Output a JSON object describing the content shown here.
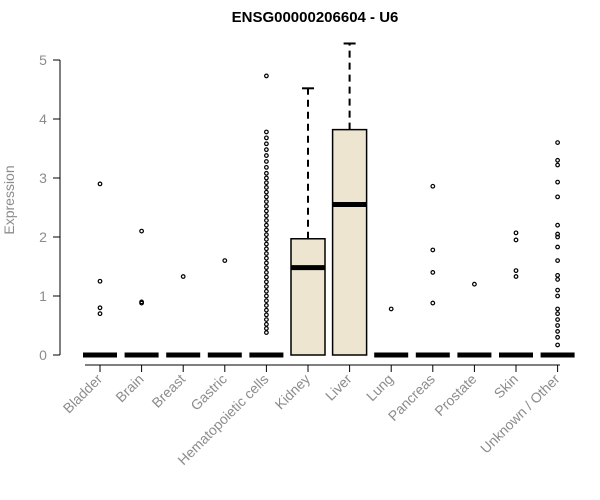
{
  "chart_data": {
    "type": "box",
    "title": "ENSG00000206604 - U6",
    "xlabel": "",
    "ylabel": "Expression",
    "ylim": [
      0,
      5.3
    ],
    "yticks": [
      0,
      1,
      2,
      3,
      4,
      5
    ],
    "grid": false,
    "legend": "none",
    "colors": {
      "box_fill": "#ede5cf",
      "stroke": "#000000",
      "axis_text": "#8c8c8c"
    },
    "categories": [
      "Bladder",
      "Brain",
      "Breast",
      "Gastric",
      "Hematopoietic cells",
      "Kidney",
      "Liver",
      "Lung",
      "Pancreas",
      "Prostate",
      "Skin",
      "Unknown / Other"
    ],
    "boxes": [
      {
        "category": "Bladder",
        "min": 0,
        "q1": 0,
        "median": 0,
        "q3": 0,
        "max": 0
      },
      {
        "category": "Brain",
        "min": 0,
        "q1": 0,
        "median": 0,
        "q3": 0,
        "max": 0
      },
      {
        "category": "Breast",
        "min": 0,
        "q1": 0,
        "median": 0,
        "q3": 0,
        "max": 0
      },
      {
        "category": "Gastric",
        "min": 0,
        "q1": 0,
        "median": 0,
        "q3": 0,
        "max": 0
      },
      {
        "category": "Hematopoietic cells",
        "min": 0,
        "q1": 0,
        "median": 0,
        "q3": 0,
        "max": 0
      },
      {
        "category": "Kidney",
        "min": 0,
        "q1": 0,
        "median": 1.48,
        "q3": 1.97,
        "max": 4.52
      },
      {
        "category": "Liver",
        "min": 0,
        "q1": 0,
        "median": 2.55,
        "q3": 3.82,
        "max": 5.28
      },
      {
        "category": "Lung",
        "min": 0,
        "q1": 0,
        "median": 0,
        "q3": 0,
        "max": 0
      },
      {
        "category": "Pancreas",
        "min": 0,
        "q1": 0,
        "median": 0,
        "q3": 0,
        "max": 0
      },
      {
        "category": "Prostate",
        "min": 0,
        "q1": 0,
        "median": 0,
        "q3": 0,
        "max": 0
      },
      {
        "category": "Skin",
        "min": 0,
        "q1": 0,
        "median": 0,
        "q3": 0,
        "max": 0
      },
      {
        "category": "Unknown / Other",
        "min": 0,
        "q1": 0,
        "median": 0,
        "q3": 0,
        "max": 0
      }
    ],
    "outliers": [
      {
        "category": "Bladder",
        "values": [
          2.9,
          1.25,
          0.8,
          0.7
        ]
      },
      {
        "category": "Brain",
        "values": [
          2.1,
          0.9,
          0.88
        ]
      },
      {
        "category": "Breast",
        "values": [
          1.33
        ]
      },
      {
        "category": "Gastric",
        "values": [
          1.6
        ]
      },
      {
        "category": "Hematopoietic cells",
        "values": [
          4.73,
          3.78,
          3.68,
          3.58,
          3.48,
          3.38,
          3.28,
          3.18,
          3.08,
          3.0,
          2.92,
          2.84,
          2.76,
          2.68,
          2.6,
          2.52,
          2.44,
          2.36,
          2.28,
          2.2,
          2.12,
          2.04,
          1.96,
          1.88,
          1.8,
          1.72,
          1.64,
          1.56,
          1.48,
          1.4,
          1.32,
          1.24,
          1.16,
          1.08,
          1.0,
          0.92,
          0.84,
          0.76,
          0.68,
          0.6,
          0.52,
          0.45,
          0.38
        ]
      },
      {
        "category": "Lung",
        "values": [
          0.78
        ]
      },
      {
        "category": "Pancreas",
        "values": [
          2.86,
          1.78,
          1.4,
          0.88
        ]
      },
      {
        "category": "Prostate",
        "values": [
          1.2
        ]
      },
      {
        "category": "Skin",
        "values": [
          2.07,
          1.95,
          1.43,
          1.33
        ]
      },
      {
        "category": "Unknown / Other",
        "values": [
          3.6,
          3.3,
          3.22,
          2.93,
          2.68,
          2.2,
          2.05,
          2.0,
          1.83,
          1.6,
          1.35,
          1.28,
          1.1,
          1.0,
          0.78,
          0.7,
          0.6,
          0.5,
          0.4,
          0.3,
          0.17
        ]
      }
    ]
  }
}
